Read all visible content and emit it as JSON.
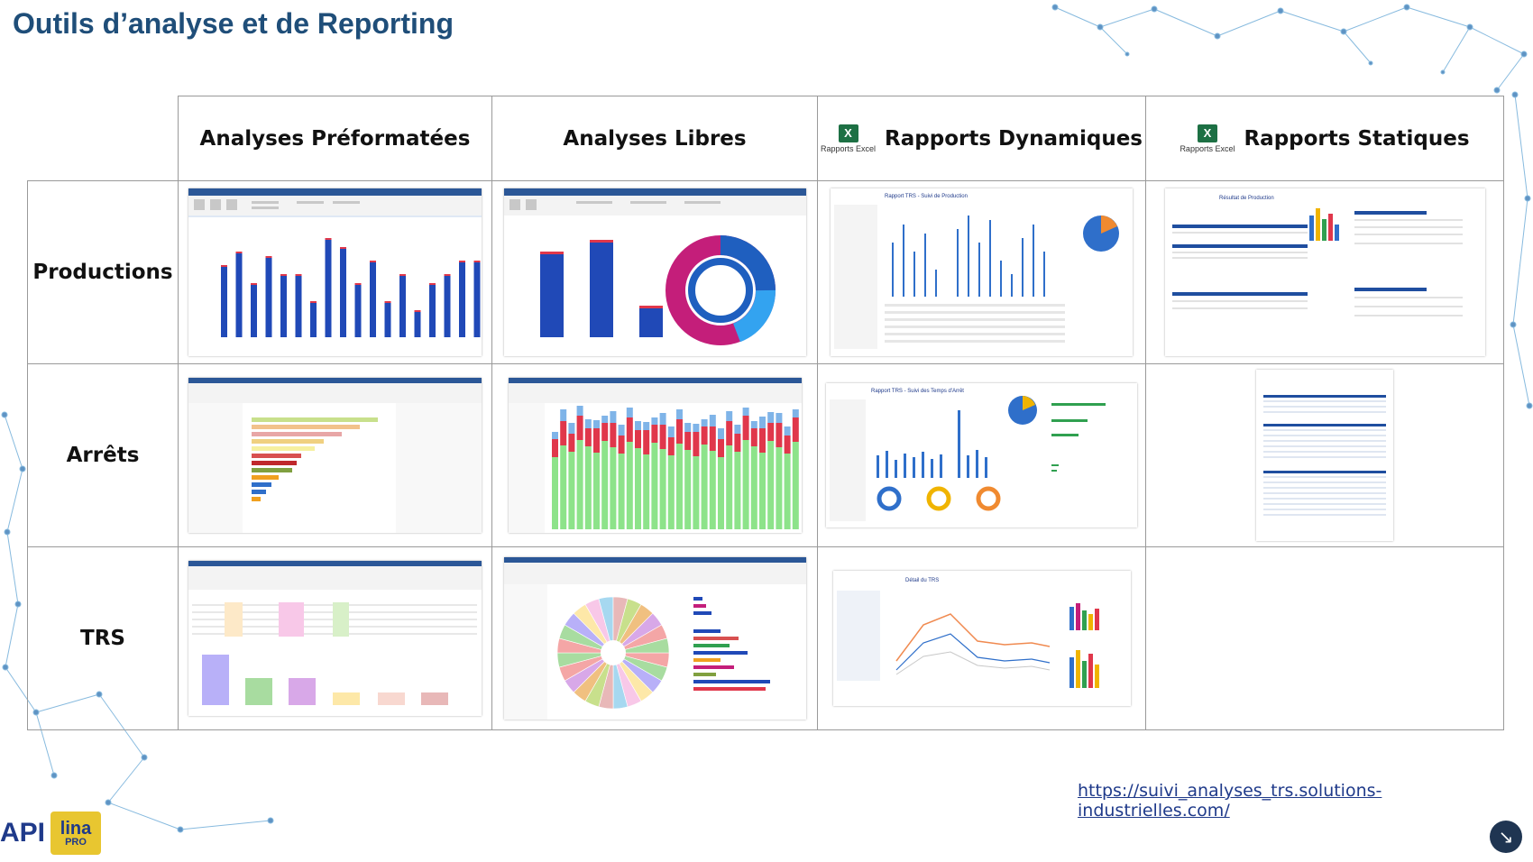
{
  "slide": {
    "title": "Outils d’analyse et de Reporting",
    "url": "https://suivi_analyses_trs.solutions-industrielles.com/",
    "logo_api": "API",
    "logo_lina": "lina",
    "logo_pro": "PRO",
    "next_icon": "arrow-down-right-icon"
  },
  "columns": [
    {
      "label": "Analyses Préformatées"
    },
    {
      "label": "Analyses Libres"
    },
    {
      "label": "Rapports Dynamiques",
      "badge": "Rapports Excel"
    },
    {
      "label": "Rapports Statiques",
      "badge": "Rapports Excel"
    }
  ],
  "rows": [
    {
      "label": "Productions"
    },
    {
      "label": "Arrêts"
    },
    {
      "label": "TRS"
    }
  ],
  "thumbnail_titles": {
    "prod_dyn": "Rapport TRS - Suivi de Production",
    "prod_stat": "Résultat de Production",
    "arr_dyn": "Rapport TRS - Suivi des Temps d'Arrêt",
    "trs_dyn": "Détail du TRS"
  },
  "colors": {
    "title": "#1f4e79",
    "bar_blue": "#2049b7",
    "bar_red": "#e0374b",
    "bar_green": "#8de38a",
    "donut_magenta": "#c41e7a",
    "donut_blue": "#1f5fbf",
    "excel_green": "#1d7044"
  }
}
